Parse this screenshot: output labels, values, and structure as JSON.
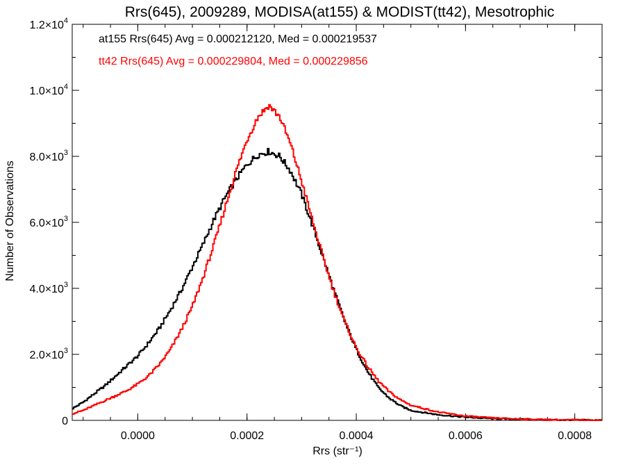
{
  "chart_data": {
    "type": "line",
    "subtype": "step-histogram",
    "title": "Rrs(645), 2009289, MODISA(at155) & MODIST(tt42), Mesotrophic",
    "xlabel": "Rrs (str⁻¹)",
    "ylabel": "Number of Observations",
    "xlim": [
      -0.00012,
      0.00085
    ],
    "ylim": [
      0,
      12000
    ],
    "x_ticks": [
      {
        "value": 0.0,
        "label": "0.0000"
      },
      {
        "value": 0.0002,
        "label": "0.0002"
      },
      {
        "value": 0.0004,
        "label": "0.0004"
      },
      {
        "value": 0.0006,
        "label": "0.0006"
      },
      {
        "value": 0.0008,
        "label": "0.0008"
      }
    ],
    "y_ticks": [
      {
        "value": 0,
        "mantissa": "0",
        "exponent": ""
      },
      {
        "value": 2000,
        "mantissa": "2.0×10",
        "exponent": "3"
      },
      {
        "value": 4000,
        "mantissa": "4.0×10",
        "exponent": "3"
      },
      {
        "value": 6000,
        "mantissa": "6.0×10",
        "exponent": "3"
      },
      {
        "value": 8000,
        "mantissa": "8.0×10",
        "exponent": "3"
      },
      {
        "value": 10000,
        "mantissa": "1.0×10",
        "exponent": "4"
      },
      {
        "value": 12000,
        "mantissa": "1.2×10",
        "exponent": "4"
      }
    ],
    "grid": false,
    "legend_position": "top-left",
    "legend": [
      {
        "text": "at155 Rrs(645) Avg = 0.000212120, Med = 0.000219537",
        "color": "#000000"
      },
      {
        "text": "tt42 Rrs(645) Avg = 0.000229804, Med = 0.000229856",
        "color": "#ff0000"
      }
    ],
    "series": [
      {
        "color": "#000000",
        "x": [
          -0.00012,
          -0.0001,
          -8e-05,
          -6e-05,
          -4e-05,
          -2e-05,
          0.0,
          2e-05,
          4e-05,
          6e-05,
          8e-05,
          0.0001,
          0.00012,
          0.00014,
          0.00016,
          0.00018,
          0.0002,
          0.00022,
          0.00024,
          0.00026,
          0.00028,
          0.0003,
          0.00032,
          0.00034,
          0.00036,
          0.00038,
          0.0004,
          0.00042,
          0.00044,
          0.00046,
          0.00048,
          0.0005,
          0.00055,
          0.0006,
          0.00065,
          0.0007,
          0.00075,
          0.0008,
          0.00085
        ],
        "y": [
          350,
          550,
          800,
          1050,
          1350,
          1650,
          1950,
          2350,
          2800,
          3350,
          3950,
          4650,
          5350,
          6100,
          6750,
          7300,
          7750,
          8050,
          8150,
          8000,
          7550,
          6850,
          5900,
          4900,
          3900,
          2950,
          2150,
          1500,
          1000,
          680,
          450,
          300,
          170,
          95,
          55,
          30,
          15,
          8,
          5
        ]
      },
      {
        "color": "#ff0000",
        "x": [
          -0.00012,
          -0.0001,
          -8e-05,
          -6e-05,
          -4e-05,
          -2e-05,
          0.0,
          2e-05,
          4e-05,
          6e-05,
          8e-05,
          0.0001,
          0.00012,
          0.00014,
          0.00016,
          0.00018,
          0.0002,
          0.00022,
          0.00024,
          0.00026,
          0.00028,
          0.0003,
          0.00032,
          0.00034,
          0.00036,
          0.00038,
          0.0004,
          0.00042,
          0.00044,
          0.00046,
          0.00048,
          0.0005,
          0.00055,
          0.0006,
          0.00065,
          0.0007,
          0.00075,
          0.0008,
          0.00085
        ],
        "y": [
          200,
          300,
          450,
          600,
          750,
          900,
          1100,
          1350,
          1700,
          2150,
          2750,
          3450,
          4350,
          5350,
          6450,
          7550,
          8500,
          9200,
          9550,
          9200,
          8350,
          7250,
          6050,
          4900,
          3850,
          2950,
          2200,
          1650,
          1200,
          870,
          630,
          460,
          250,
          130,
          70,
          40,
          20,
          10,
          5
        ]
      }
    ]
  }
}
